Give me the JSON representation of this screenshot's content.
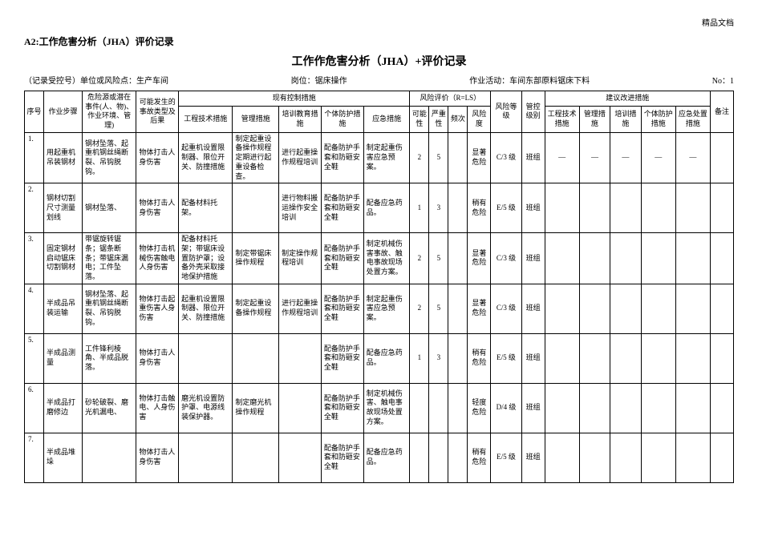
{
  "header": {
    "mark": "精品文档",
    "code": "A2:工作危害分析（JHA）评价记录",
    "title": "工作作危害分析（JHA）+评价记录",
    "meta_left": "（记录受控号）单位或风险点：生产车间",
    "meta_mid1": "岗位：锯床操作",
    "meta_mid2": "作业活动：车间东部原料锯床下料",
    "meta_right": "No：1"
  },
  "columns": {
    "c1": "序号",
    "c2": "作业步骤",
    "c3": "危险源或潜在事件(人、物)、作业环境、管理)",
    "c4": "可能发生的事故类型及后果",
    "group_control": "现有控制措施",
    "c5": "工程技术措施",
    "c6": "管理措施",
    "c7": "培训教育措施",
    "c8": "个体防护措施",
    "c9": "应急措施",
    "group_risk": "风险评价（R=LS）",
    "c10": "可能性",
    "c11": "严重性",
    "c12": "频次",
    "c13": "风险度",
    "c14": "风险等级",
    "c15": "管控级别",
    "group_suggest": "建议改进措施",
    "s1": "工程技术措施",
    "s2": "管理措施",
    "s3": "培训措施",
    "s4": "个体防护措施",
    "s5": "应急处置措施",
    "remark": "备注"
  },
  "rows": [
    {
      "n": "1.",
      "step": "用起重机吊装钢材",
      "hazard": "钢材坠落、起重机钢丝绳断裂、吊钩脱钩。",
      "consequence": "物体打击人身伤害",
      "eng": "起重机设置限制器、限位开关、防撞措施",
      "mgmt": "制定起重设备操作规程定期进行起重设备检查。",
      "train": "进行起重操作规程培训",
      "ppe": "配备防护手套和防砸安全鞋",
      "emerg": "制定起重伤害应急预案。",
      "l": "2",
      "s": "5",
      "f": "",
      "rd": "显著危险",
      "level": "C/3 级",
      "ctrl": "班组",
      "s1": "—",
      "s2": "—",
      "s3": "—",
      "s4": "—",
      "s5": "—"
    },
    {
      "n": "2.",
      "step": "钢材切割尺寸测量划线",
      "hazard": "钢材坠落、",
      "consequence": "物体打击人身伤害",
      "eng": "配备材料托架。",
      "mgmt": "",
      "train": "进行物料搬运操作安全培训",
      "ppe": "配备防护手套和防砸安全鞋",
      "emerg": "配备应急药品。",
      "l": "1",
      "s": "3",
      "f": "",
      "rd": "稍有危险",
      "level": "E/5 级",
      "ctrl": "班组",
      "s1": "",
      "s2": "",
      "s3": "",
      "s4": "",
      "s5": ""
    },
    {
      "n": "3.",
      "step": "固定钢材启动锯床切割钢材",
      "hazard": "带锯旋转锯条；锯条断条；带锯床漏电；工件坠落。",
      "consequence": "物体打击机械伤害触电人身伤害",
      "eng": "配备材料托架；带锯床设置防护罩；设备外壳采取接地保护措施",
      "mgmt": "制定带锯床操作规程",
      "train": "制定操作规程培训",
      "ppe": "配备防护手套和防砸安全鞋",
      "emerg": "制定机械伤害事故、触电事故现场处置方案。",
      "l": "2",
      "s": "5",
      "f": "",
      "rd": "显著危险",
      "level": "C/3 级",
      "ctrl": "班组",
      "s1": "",
      "s2": "",
      "s3": "",
      "s4": "",
      "s5": ""
    },
    {
      "n": "4.",
      "step": "半成品吊装运输",
      "hazard": "钢材坠落、起重机钢丝绳断裂、吊钩脱钩。",
      "consequence": "物体打击起重伤害人身伤害",
      "eng": "起重机设置限制器、限位开关、防撞措施",
      "mgmt": "制定起重设备操作规程",
      "train": "进行起重操作规程培训",
      "ppe": "配备防护手套和防砸安全鞋",
      "emerg": "制定起重伤害应急预案。",
      "l": "2",
      "s": "5",
      "f": "",
      "rd": "显著危险",
      "level": "C/3 级",
      "ctrl": "班组",
      "s1": "",
      "s2": "",
      "s3": "",
      "s4": "",
      "s5": ""
    },
    {
      "n": "5.",
      "step": "半成品测量",
      "hazard": "工件锋利棱角、半成品脱落。",
      "consequence": "物体打击人身伤害",
      "eng": "",
      "mgmt": "",
      "train": "",
      "ppe": "配备防护手套和防砸安全鞋",
      "emerg": "配备应急药品。",
      "l": "1",
      "s": "3",
      "f": "",
      "rd": "稍有危险",
      "level": "E/5 级",
      "ctrl": "班组",
      "s1": "",
      "s2": "",
      "s3": "",
      "s4": "",
      "s5": ""
    },
    {
      "n": "6.",
      "step": "半成品打磨修边",
      "hazard": "砂轮破裂、磨光机漏电、",
      "consequence": "物体打击触电、人身伤害",
      "eng": "磨光机设置防护罩、电源线装保护器。",
      "mgmt": "制定磨光机操作规程",
      "train": "",
      "ppe": "配备防护手套和防砸安全鞋",
      "emerg": "制定机械伤害、触电事故现场处置方案。",
      "l": "",
      "s": "",
      "f": "",
      "rd": "轻度危险",
      "level": "D/4 级",
      "ctrl": "班组",
      "s1": "",
      "s2": "",
      "s3": "",
      "s4": "",
      "s5": ""
    },
    {
      "n": "7.",
      "step": "半成品堆垛",
      "hazard": "",
      "consequence": "物体打击人身伤害",
      "eng": "",
      "mgmt": "",
      "train": "",
      "ppe": "配备防护手套和防砸安全鞋",
      "emerg": "配备应急药品。",
      "l": "",
      "s": "",
      "f": "",
      "rd": "稍有危险",
      "level": "E/5 级",
      "ctrl": "班组",
      "s1": "",
      "s2": "",
      "s3": "",
      "s4": "",
      "s5": ""
    }
  ]
}
